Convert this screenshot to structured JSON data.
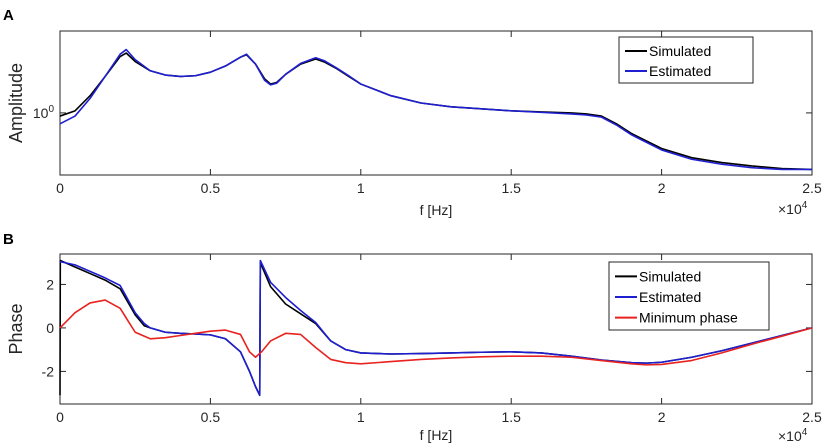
{
  "chart_data": [
    {
      "panel_label": "A",
      "type": "line",
      "xlabel": "f [Hz]",
      "ylabel": "Amplitude",
      "x_exponent_label": "×10",
      "x_exponent": "4",
      "xlim": [
        0,
        2.5
      ],
      "y_scale": "log",
      "xticks": [
        "0",
        "0.5",
        "1",
        "1.5",
        "2",
        "2.5"
      ],
      "yticks": [
        {
          "value": 1,
          "label": "10",
          "exp": "0"
        }
      ],
      "ylim": [
        0.55,
        2.2
      ],
      "legend_position": "top-right",
      "series": [
        {
          "name": "Simulated",
          "color": "#000000",
          "x": [
            0,
            0.05,
            0.1,
            0.15,
            0.2,
            0.22,
            0.25,
            0.3,
            0.35,
            0.4,
            0.45,
            0.5,
            0.55,
            0.6,
            0.62,
            0.65,
            0.68,
            0.7,
            0.72,
            0.75,
            0.8,
            0.85,
            0.88,
            0.92,
            0.96,
            1.0,
            1.1,
            1.2,
            1.3,
            1.4,
            1.5,
            1.6,
            1.7,
            1.75,
            1.8,
            1.85,
            1.9,
            2.0,
            2.1,
            2.2,
            2.3,
            2.4,
            2.5
          ],
          "y": [
            0.97,
            1.02,
            1.18,
            1.42,
            1.72,
            1.78,
            1.64,
            1.5,
            1.44,
            1.42,
            1.43,
            1.48,
            1.57,
            1.71,
            1.75,
            1.6,
            1.39,
            1.32,
            1.34,
            1.45,
            1.6,
            1.68,
            1.63,
            1.53,
            1.42,
            1.32,
            1.18,
            1.1,
            1.06,
            1.04,
            1.02,
            1.01,
            1.0,
            0.99,
            0.97,
            0.9,
            0.82,
            0.71,
            0.65,
            0.62,
            0.6,
            0.585,
            0.58
          ]
        },
        {
          "name": "Estimated",
          "color": "#1f1fd2",
          "x": [
            0,
            0.05,
            0.1,
            0.15,
            0.2,
            0.22,
            0.25,
            0.3,
            0.35,
            0.4,
            0.45,
            0.5,
            0.55,
            0.6,
            0.62,
            0.65,
            0.68,
            0.7,
            0.72,
            0.75,
            0.8,
            0.85,
            0.88,
            0.92,
            0.96,
            1.0,
            1.1,
            1.2,
            1.3,
            1.4,
            1.5,
            1.6,
            1.7,
            1.75,
            1.8,
            1.85,
            1.9,
            2.0,
            2.1,
            2.2,
            2.3,
            2.4,
            2.5
          ],
          "y": [
            0.9,
            0.97,
            1.15,
            1.42,
            1.76,
            1.84,
            1.67,
            1.5,
            1.44,
            1.42,
            1.43,
            1.48,
            1.57,
            1.71,
            1.76,
            1.6,
            1.37,
            1.31,
            1.33,
            1.45,
            1.61,
            1.7,
            1.65,
            1.54,
            1.43,
            1.32,
            1.18,
            1.1,
            1.06,
            1.04,
            1.02,
            1.005,
            0.99,
            0.98,
            0.96,
            0.89,
            0.81,
            0.7,
            0.64,
            0.61,
            0.59,
            0.58,
            0.58
          ]
        }
      ]
    },
    {
      "panel_label": "B",
      "type": "line",
      "xlabel": "f [Hz]",
      "ylabel": "Phase",
      "x_exponent_label": "×10",
      "x_exponent": "4",
      "xlim": [
        0,
        2.5
      ],
      "ylim": [
        -3.5,
        3.4
      ],
      "xticks": [
        "0",
        "0.5",
        "1",
        "1.5",
        "2",
        "2.5"
      ],
      "yticks": [
        {
          "value": 2,
          "label": "2"
        },
        {
          "value": 0,
          "label": "0"
        },
        {
          "value": -2,
          "label": "-2"
        }
      ],
      "legend_position": "top-right",
      "series": [
        {
          "name": "Simulated",
          "color": "#000000",
          "x": [
            0,
            0.001,
            0.05,
            0.1,
            0.15,
            0.2,
            0.25,
            0.28,
            0.3,
            0.35,
            0.4,
            0.45,
            0.5,
            0.55,
            0.6,
            0.63,
            0.65,
            0.664,
            0.666,
            0.7,
            0.75,
            0.8,
            0.85,
            0.9,
            0.95,
            1.0,
            1.1,
            1.2,
            1.3,
            1.4,
            1.5,
            1.6,
            1.7,
            1.8,
            1.9,
            1.95,
            2.0,
            2.1,
            2.2,
            2.3,
            2.4,
            2.5
          ],
          "y": [
            -3.1,
            3.1,
            2.8,
            2.5,
            2.2,
            1.8,
            0.6,
            0.1,
            0.0,
            -0.2,
            -0.25,
            -0.28,
            -0.32,
            -0.5,
            -1.1,
            -2.0,
            -2.7,
            -3.1,
            3.0,
            1.9,
            1.1,
            0.65,
            0.2,
            -0.6,
            -1.0,
            -1.15,
            -1.2,
            -1.18,
            -1.15,
            -1.12,
            -1.1,
            -1.15,
            -1.3,
            -1.48,
            -1.6,
            -1.62,
            -1.58,
            -1.35,
            -1.05,
            -0.7,
            -0.35,
            0.0
          ]
        },
        {
          "name": "Estimated",
          "color": "#1f1fd2",
          "x": [
            0,
            0.05,
            0.1,
            0.15,
            0.2,
            0.25,
            0.28,
            0.3,
            0.35,
            0.4,
            0.45,
            0.5,
            0.55,
            0.6,
            0.63,
            0.65,
            0.664,
            0.666,
            0.7,
            0.75,
            0.8,
            0.85,
            0.9,
            0.95,
            1.0,
            1.1,
            1.2,
            1.3,
            1.4,
            1.5,
            1.6,
            1.7,
            1.8,
            1.9,
            1.95,
            2.0,
            2.1,
            2.2,
            2.3,
            2.4,
            2.5
          ],
          "y": [
            3.05,
            2.9,
            2.6,
            2.3,
            1.95,
            0.7,
            0.2,
            0.0,
            -0.2,
            -0.25,
            -0.28,
            -0.32,
            -0.5,
            -1.1,
            -2.0,
            -2.7,
            -3.1,
            3.1,
            2.1,
            1.4,
            0.8,
            0.25,
            -0.6,
            -1.0,
            -1.15,
            -1.2,
            -1.18,
            -1.15,
            -1.12,
            -1.1,
            -1.15,
            -1.3,
            -1.48,
            -1.6,
            -1.62,
            -1.58,
            -1.35,
            -1.05,
            -0.7,
            -0.35,
            0.0
          ]
        },
        {
          "name": "Minimum phase",
          "color": "#e8221e",
          "x": [
            0,
            0.05,
            0.1,
            0.15,
            0.2,
            0.25,
            0.3,
            0.35,
            0.4,
            0.45,
            0.5,
            0.55,
            0.6,
            0.63,
            0.65,
            0.67,
            0.7,
            0.75,
            0.8,
            0.85,
            0.9,
            0.95,
            1.0,
            1.1,
            1.2,
            1.3,
            1.4,
            1.5,
            1.6,
            1.7,
            1.8,
            1.9,
            1.95,
            2.0,
            2.1,
            2.2,
            2.3,
            2.4,
            2.5
          ],
          "y": [
            0.0,
            0.7,
            1.15,
            1.28,
            0.9,
            -0.2,
            -0.5,
            -0.45,
            -0.35,
            -0.25,
            -0.15,
            -0.1,
            -0.3,
            -1.1,
            -1.35,
            -1.1,
            -0.6,
            -0.25,
            -0.3,
            -0.9,
            -1.45,
            -1.6,
            -1.65,
            -1.55,
            -1.45,
            -1.38,
            -1.33,
            -1.3,
            -1.3,
            -1.35,
            -1.5,
            -1.65,
            -1.7,
            -1.68,
            -1.5,
            -1.15,
            -0.75,
            -0.38,
            0.0
          ]
        }
      ]
    }
  ]
}
